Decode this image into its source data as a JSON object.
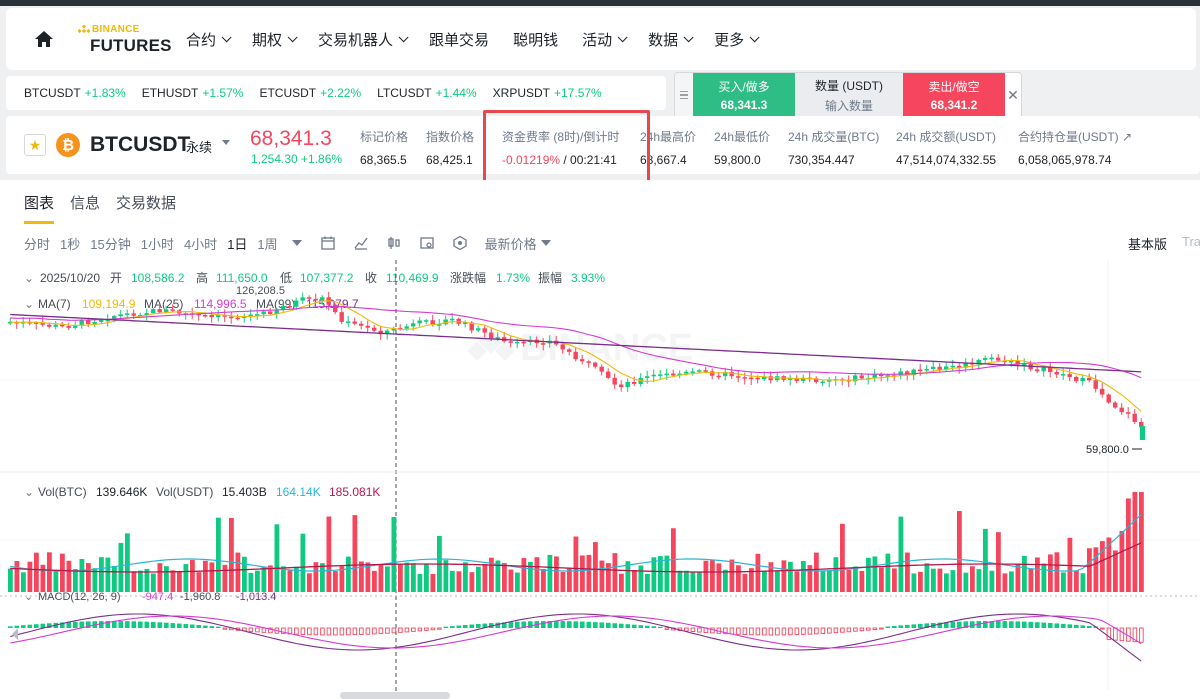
{
  "nav": {
    "logo_top": "BINANCE",
    "logo_bottom": "FUTURES",
    "items": [
      {
        "label": "合约",
        "dropdown": true
      },
      {
        "label": "期权",
        "dropdown": true
      },
      {
        "label": "交易机器人",
        "dropdown": true
      },
      {
        "label": "跟单交易",
        "dropdown": false
      },
      {
        "label": "聪明钱",
        "dropdown": false
      },
      {
        "label": "活动",
        "dropdown": true
      },
      {
        "label": "数据",
        "dropdown": true
      },
      {
        "label": "更多",
        "dropdown": true
      }
    ]
  },
  "ticker": [
    {
      "symbol": "BTCUSDT",
      "change": "+1.83%"
    },
    {
      "symbol": "ETHUSDT",
      "change": "+1.57%"
    },
    {
      "symbol": "ETCUSDT",
      "change": "+2.22%"
    },
    {
      "symbol": "LTCUSDT",
      "change": "+1.44%"
    },
    {
      "symbol": "XRPUSDT",
      "change": "+17.57%"
    }
  ],
  "quick_trade": {
    "buy_label": "买入/做多",
    "buy_price": "68,341.3",
    "qty_label": "数量 (USDT)",
    "qty_placeholder": "输入数量",
    "sell_label": "卖出/做空",
    "sell_price": "68,341.2",
    "close": "✕"
  },
  "header": {
    "symbol": "BTCUSDT",
    "contract_type": "永续",
    "last_price": "68,341.3",
    "change": "1,254.30 +1.86%",
    "stats": [
      {
        "label": "标记价格",
        "value": "68,365.5"
      },
      {
        "label": "指数价格",
        "value": "68,425.1"
      },
      {
        "label": "资金费率 (8时)/倒计时",
        "value_neg": "-0.01219%",
        "value": " / 00:21:41"
      },
      {
        "label": "24h最高价",
        "value": "68,667.4"
      },
      {
        "label": "24h最低价",
        "value": "59,800.0"
      },
      {
        "label": "24h 成交量(BTC)",
        "value": "730,354.447"
      },
      {
        "label": "24h 成交额(USDT)",
        "value": "47,514,074,332.55"
      },
      {
        "label": "合约持仓量(USDT) ↗",
        "value": "6,058,065,978.74"
      }
    ]
  },
  "tabs": [
    "图表",
    "信息",
    "交易数据"
  ],
  "toolbar": {
    "intervals": [
      "分时",
      "1秒",
      "15分钟",
      "1小时",
      "4小时",
      "1日",
      "1周"
    ],
    "active_interval": "1日",
    "price_type": "最新价格",
    "version": "基本版",
    "version2": "Trad"
  },
  "legend": {
    "date": "2025/10/20",
    "open_label": "开",
    "open": "108,586.2",
    "high_label": "高",
    "high": "111,650.0",
    "low_label": "低",
    "low": "107,377.2",
    "close_label": "收",
    "close": "110,469.9",
    "chg_label": "涨跌幅",
    "chg": "1.73%",
    "amp_label": "振幅",
    "amp": "3.93%",
    "ma_labels": [
      "MA(7)",
      "MA(25)",
      "MA(99)"
    ],
    "ma_values": [
      "109,194.9",
      "114,996.5",
      "115,079.7"
    ],
    "high_marker": "126,208.5",
    "low_marker": "59,800.0",
    "watermark": "BINANCE",
    "vol_label": "Vol(BTC)",
    "vol_btc": "139.646K",
    "vol_usdt_label": "Vol(USDT)",
    "vol_usdt": "15.403B",
    "vol_ma1": "164.14K",
    "vol_ma2": "185.081K",
    "macd_label": "MACD(12, 26, 9)",
    "macd_values": [
      "-947.4",
      "-1,960.8",
      "-1,013.4"
    ]
  },
  "colors": {
    "up": "#0ecb81",
    "down": "#f6465d",
    "ma7": "#f0b90b",
    "ma25": "#d63bd6",
    "ma99": "#7b2d8b",
    "vol_ma1": "#29b6d6",
    "vol_ma2": "#b8174a"
  },
  "chart_data": {
    "type": "candlestick",
    "interval": "1d",
    "price_range": [
      59800.0,
      126208.5
    ],
    "last_close": 68341.3,
    "day_low": 59800.0
  }
}
